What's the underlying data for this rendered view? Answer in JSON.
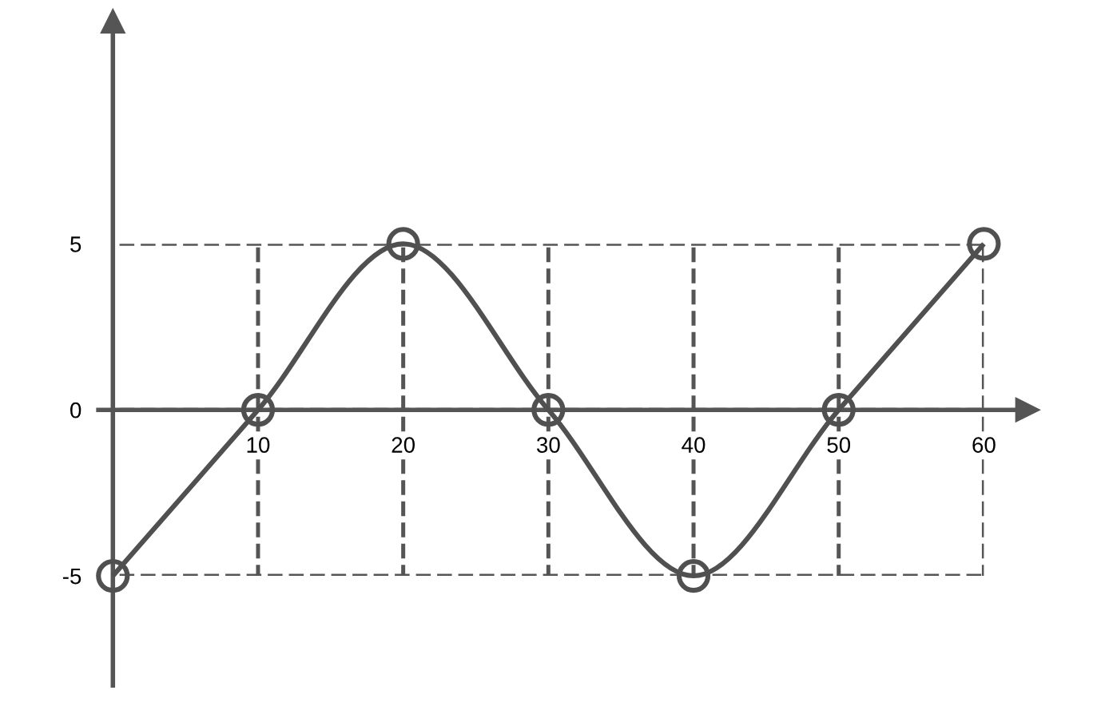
{
  "chart_data": {
    "type": "line",
    "x": [
      0,
      10,
      20,
      30,
      40,
      50,
      60
    ],
    "series": [
      {
        "color": "#505050",
        "values": [
          -5,
          0,
          5,
          0,
          -5,
          0,
          5
        ]
      }
    ],
    "xlim": [
      -1,
      63
    ],
    "ylim": [
      -8.3,
      11.7
    ],
    "xticks": [
      10,
      20,
      30,
      40,
      50,
      60
    ],
    "yticks": [
      -5,
      0,
      5
    ],
    "grid": true,
    "marker": "circle",
    "line_style": "solid"
  }
}
